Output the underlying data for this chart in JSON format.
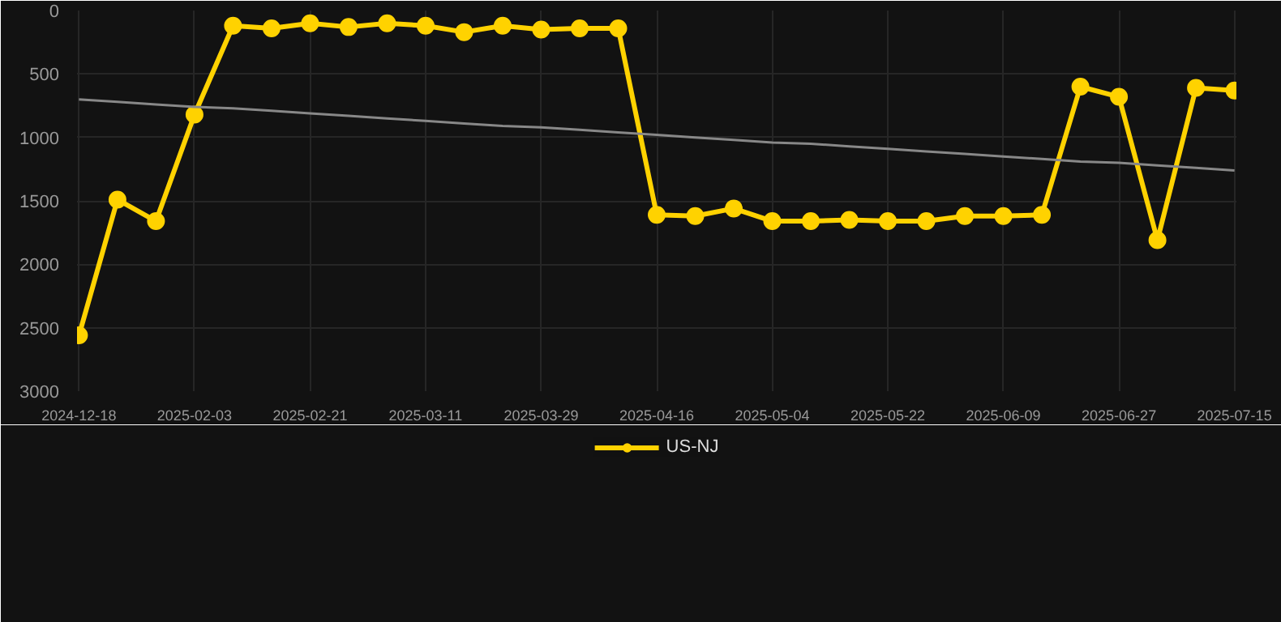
{
  "chart_data": {
    "type": "line",
    "categories": [
      "2024-12-18",
      null,
      null,
      "2025-02-03",
      null,
      null,
      "2025-02-21",
      null,
      null,
      "2025-03-11",
      null,
      null,
      "2025-03-29",
      null,
      null,
      "2025-04-16",
      null,
      null,
      "2025-05-04",
      null,
      null,
      "2025-05-22",
      null,
      null,
      "2025-06-09",
      null,
      null,
      "2025-06-27",
      null,
      null,
      "2025-07-15"
    ],
    "series": [
      {
        "name": "US-NJ",
        "color": "#ffd200",
        "marker": "circle",
        "values": [
          2560,
          1490,
          1660,
          820,
          120,
          140,
          100,
          130,
          100,
          120,
          170,
          120,
          150,
          140,
          140,
          1610,
          1620,
          1560,
          1660,
          1660,
          1650,
          1660,
          1660,
          1620,
          1620,
          1610,
          600,
          680,
          1810,
          610,
          630
        ]
      },
      {
        "type": "line",
        "color": "#888888",
        "marker": "none",
        "values": [
          700,
          720,
          740,
          760,
          770,
          790,
          810,
          830,
          850,
          870,
          890,
          910,
          920,
          940,
          960,
          980,
          1000,
          1020,
          1040,
          1050,
          1070,
          1090,
          1110,
          1130,
          1150,
          1170,
          1190,
          1200,
          1220,
          1240,
          1260
        ]
      }
    ],
    "ylim": [
      3000,
      0
    ],
    "yticks": [
      0,
      500,
      1000,
      1500,
      2000,
      2500,
      3000
    ],
    "grid": true,
    "legend": "bottom"
  }
}
